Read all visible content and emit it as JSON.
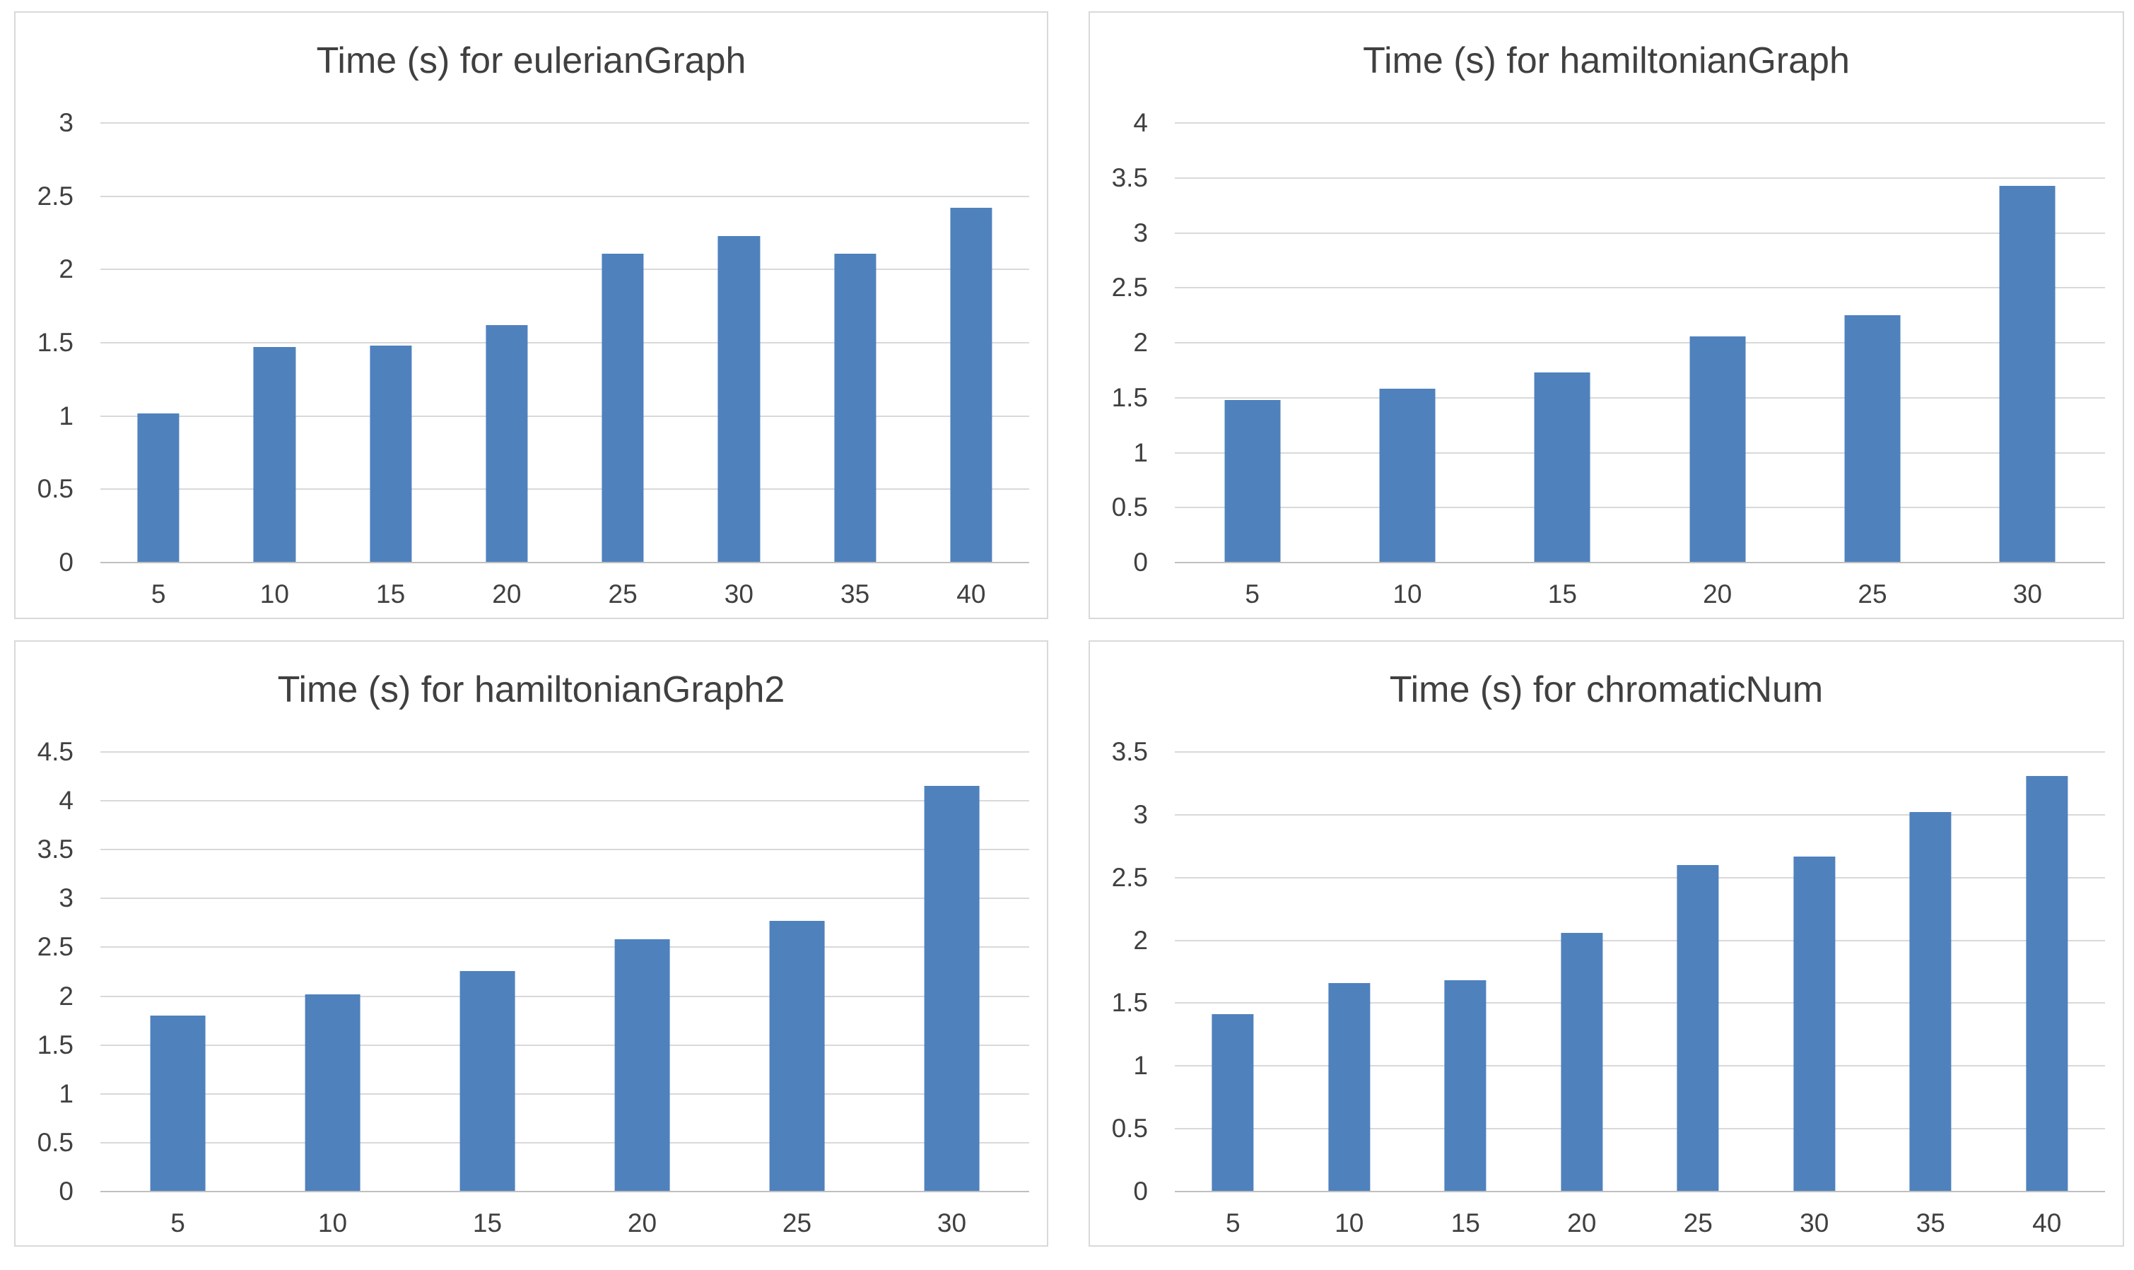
{
  "page": {
    "background": "#ffffff",
    "description_layout": "2x2 grid of bar charts"
  },
  "chart_style": {
    "bar_color": "#4f81bd",
    "gridline_color": "#d9d9d9",
    "axis_line_color": "#bfbfbf",
    "text_color": "#404040",
    "panel_border_color": "#d9d9d9",
    "grid": "horizontal gridlines on",
    "legend": "none"
  },
  "chart_data": [
    {
      "type": "bar",
      "title": "Time (s) for eulerianGraph",
      "categories": [
        "5",
        "10",
        "15",
        "20",
        "25",
        "30",
        "35",
        "40"
      ],
      "values": [
        1.02,
        1.47,
        1.48,
        1.62,
        2.11,
        2.23,
        2.11,
        2.42
      ],
      "xlabel": "",
      "ylabel": "",
      "ylim": [
        0,
        3
      ],
      "ytick_step": 0.5
    },
    {
      "type": "bar",
      "title": "Time (s) for hamiltonianGraph",
      "categories": [
        "5",
        "10",
        "15",
        "20",
        "25",
        "30"
      ],
      "values": [
        1.48,
        1.58,
        1.73,
        2.06,
        2.25,
        3.43
      ],
      "xlabel": "",
      "ylabel": "",
      "ylim": [
        0,
        4
      ],
      "ytick_step": 0.5
    },
    {
      "type": "bar",
      "title": "Time (s) for hamiltonianGraph2",
      "categories": [
        "5",
        "10",
        "15",
        "20",
        "25",
        "30"
      ],
      "values": [
        1.8,
        2.02,
        2.26,
        2.58,
        2.77,
        4.15
      ],
      "xlabel": "",
      "ylabel": "",
      "ylim": [
        0,
        4.5
      ],
      "ytick_step": 0.5
    },
    {
      "type": "bar",
      "title": "Time (s) for chromaticNum",
      "categories": [
        "5",
        "10",
        "15",
        "20",
        "25",
        "30",
        "35",
        "40"
      ],
      "values": [
        1.41,
        1.66,
        1.68,
        2.06,
        2.6,
        2.67,
        3.02,
        3.31
      ],
      "xlabel": "",
      "ylabel": "",
      "ylim": [
        0,
        3.5
      ],
      "ytick_step": 0.5
    }
  ]
}
